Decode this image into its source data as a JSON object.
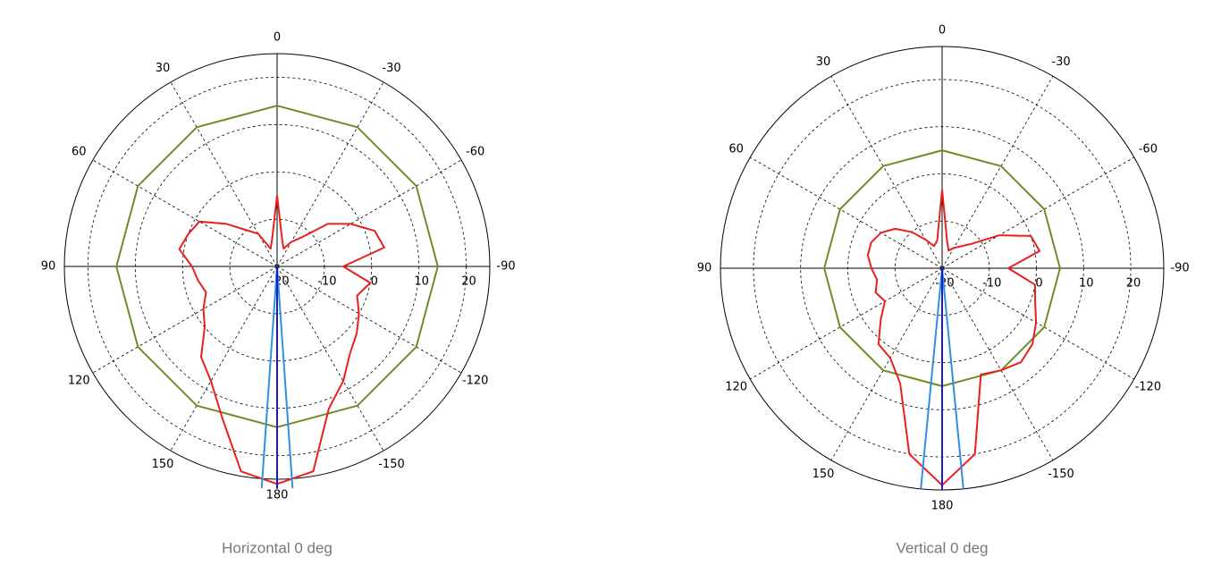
{
  "chart_data": [
    {
      "type": "polar",
      "title": "Horizontal 0 deg",
      "rlim": [
        -20,
        25
      ],
      "rticks": [
        -20,
        -10,
        0,
        10,
        20
      ],
      "thetaticks": [
        0,
        30,
        60,
        90,
        120,
        150,
        180,
        -150,
        -120,
        -90,
        -60,
        -30
      ],
      "grid": true,
      "series": [
        {
          "color": "#6b8e23",
          "closed": true,
          "theta": [
            0,
            30,
            60,
            90,
            120,
            150,
            180,
            -150,
            -120,
            -90,
            -60,
            -30
          ],
          "values": [
            14,
            14,
            14,
            14,
            14,
            14,
            14,
            14,
            14,
            14,
            14,
            14
          ]
        },
        {
          "color": "#e8201e",
          "closed": true,
          "theta": [
            -180,
            -170,
            -160,
            -150,
            -140,
            -130,
            -120,
            -110,
            -100,
            -90,
            -80,
            -70,
            -60,
            -50,
            -40,
            -30,
            -20,
            -10,
            0,
            10,
            20,
            30,
            40,
            50,
            60,
            70,
            80,
            90,
            100,
            110,
            120,
            130,
            140,
            150,
            160,
            170
          ],
          "values": [
            26,
            24,
            12,
            8,
            4,
            2,
            0,
            -2,
            0,
            -6,
            3,
            2,
            -2,
            -6,
            -12,
            -14,
            -16,
            -14,
            -5,
            -14,
            -16,
            -12,
            -10,
            -6,
            -1,
            0,
            1,
            -2,
            -3,
            -4,
            -2,
            0,
            5,
            8,
            14,
            24
          ]
        },
        {
          "color": "#2f8fe0",
          "closed": false,
          "theta": [
            176,
            0,
            -176
          ],
          "values": [
            27,
            -20,
            27
          ]
        },
        {
          "color": "#1a1acc",
          "closed": false,
          "theta": [
            180,
            180
          ],
          "values": [
            -20,
            27
          ]
        }
      ]
    },
    {
      "type": "polar",
      "title": "Vertical 0 deg",
      "rlim": [
        -20,
        27
      ],
      "rticks": [
        -20,
        -10,
        0,
        10,
        20
      ],
      "thetaticks": [
        0,
        30,
        60,
        90,
        120,
        150,
        180,
        -150,
        -120,
        -90,
        -60,
        -30
      ],
      "grid": true,
      "series": [
        {
          "color": "#6b8e23",
          "closed": true,
          "theta": [
            0,
            30,
            60,
            90,
            120,
            150,
            180,
            -150,
            -120,
            -90,
            -60,
            -30
          ],
          "values": [
            5,
            5,
            5,
            5,
            5,
            5,
            5,
            5,
            5,
            5,
            5,
            5
          ]
        },
        {
          "color": "#e8201e",
          "closed": true,
          "theta": [
            -180,
            -170,
            -160,
            -150,
            -140,
            -130,
            -120,
            -110,
            -100,
            -90,
            -80,
            -70,
            -60,
            -50,
            -40,
            -30,
            -20,
            -10,
            0,
            10,
            20,
            30,
            40,
            50,
            60,
            70,
            80,
            90,
            100,
            110,
            120,
            130,
            140,
            150,
            160,
            170
          ],
          "values": [
            26,
            20,
            4,
            5,
            6,
            5,
            3,
            1,
            0,
            -6,
            1,
            0,
            -6,
            -12,
            -14,
            -15,
            -16,
            -14,
            -3.4,
            -14,
            -15,
            -13,
            -10,
            -7,
            -5,
            -4,
            -4,
            -5,
            -6,
            -5,
            -6,
            -3,
            1,
            2,
            6,
            20
          ]
        },
        {
          "color": "#2f8fe0",
          "closed": false,
          "theta": [
            174.5,
            0,
            -174.5
          ],
          "values": [
            27,
            -20,
            27
          ]
        },
        {
          "color": "#1a1acc",
          "closed": false,
          "theta": [
            180,
            180
          ],
          "values": [
            -20,
            27
          ]
        }
      ]
    }
  ]
}
